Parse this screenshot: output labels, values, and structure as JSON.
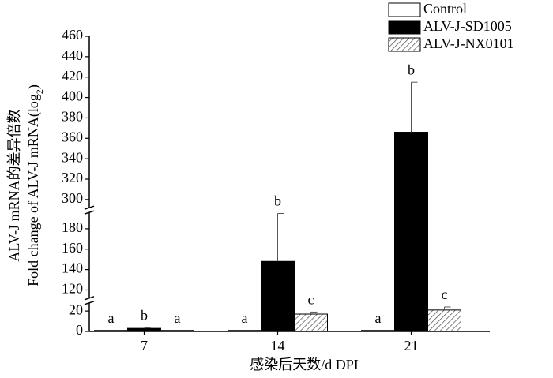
{
  "chart_data": {
    "type": "bar",
    "y_label_cn": "ALV-J mRNA的差异倍数",
    "y_label_en": [
      "Fold change of ALV-J mRNA(log",
      "2",
      ")"
    ],
    "x_label": "感染后天数/d DPI",
    "categories": [
      "7",
      "14",
      "21"
    ],
    "series": [
      {
        "name": "Control",
        "color": "#ffffff",
        "values": [
          1,
          1,
          1
        ],
        "errors": [
          0,
          0,
          0
        ],
        "letters": [
          "a",
          "a",
          "a"
        ]
      },
      {
        "name": "ALV-J-SD1005",
        "color": "#000000",
        "values": [
          3,
          148,
          366
        ],
        "errors": [
          0.5,
          47,
          49
        ],
        "letters": [
          "b",
          "b",
          "b"
        ]
      },
      {
        "name": "ALV-J-NX0101",
        "color": "hatch",
        "values": [
          1,
          17,
          21
        ],
        "errors": [
          0,
          2,
          3
        ],
        "letters": [
          "a",
          "c",
          "c"
        ]
      }
    ],
    "ylim": [
      0,
      460
    ],
    "y_breaks": [
      [
        28,
        112
      ],
      [
        196,
        292
      ]
    ],
    "yticks": [
      0,
      20,
      120,
      140,
      160,
      180,
      300,
      320,
      340,
      360,
      380,
      400,
      420,
      440,
      460
    ]
  }
}
